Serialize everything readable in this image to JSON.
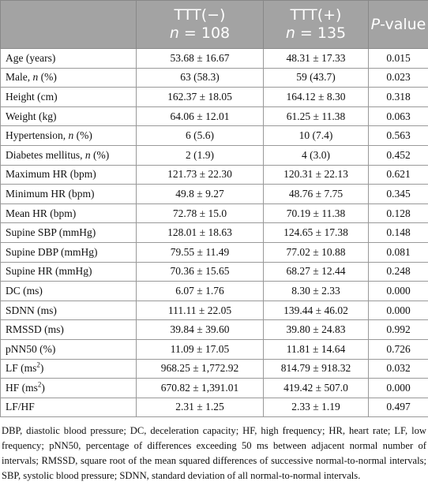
{
  "table": {
    "header": [
      null,
      {
        "group": "TTT(−)",
        "n_symbol": "n",
        "n_value": "= 108"
      },
      {
        "group": "TTT(+)",
        "n_symbol": "n",
        "n_value": "= 135"
      },
      [
        "P",
        "-value"
      ]
    ],
    "rows": [
      {
        "label": [
          "Age (years)"
        ],
        "cells": [
          "53.68 ± 16.67",
          "48.31 ± 17.33",
          "0.015"
        ]
      },
      {
        "label": [
          "Male, ",
          "n",
          " (%)"
        ],
        "cells": [
          "63 (58.3)",
          "59 (43.7)",
          "0.023"
        ]
      },
      {
        "label": [
          "Height (cm)"
        ],
        "cells": [
          "162.37 ± 18.05",
          "164.12 ± 8.30",
          "0.318"
        ]
      },
      {
        "label": [
          "Weight (kg)"
        ],
        "cells": [
          "64.06 ± 12.01",
          "61.25 ± 11.38",
          "0.063"
        ]
      },
      {
        "label": [
          "Hypertension, ",
          "n",
          " (%)"
        ],
        "cells": [
          "6 (5.6)",
          "10 (7.4)",
          "0.563"
        ]
      },
      {
        "label": [
          "Diabetes mellitus, ",
          "n",
          " (%)"
        ],
        "cells": [
          "2 (1.9)",
          "4 (3.0)",
          "0.452"
        ]
      },
      {
        "label": [
          "Maximum HR (bpm)"
        ],
        "cells": [
          "121.73 ± 22.30",
          "120.31 ± 22.13",
          "0.621"
        ]
      },
      {
        "label": [
          "Minimum HR (bpm)"
        ],
        "cells": [
          "49.8 ± 9.27",
          "48.76 ± 7.75",
          "0.345"
        ]
      },
      {
        "label": [
          "Mean HR (bpm)"
        ],
        "cells": [
          "72.78 ± 15.0",
          "70.19 ± 11.38",
          "0.128"
        ]
      },
      {
        "label": [
          "Supine SBP (mmHg)"
        ],
        "cells": [
          "128.01 ± 18.63",
          "124.65 ± 17.38",
          "0.148"
        ]
      },
      {
        "label": [
          "Supine DBP (mmHg)"
        ],
        "cells": [
          "79.55 ± 11.49",
          "77.02 ± 10.88",
          "0.081"
        ]
      },
      {
        "label": [
          "Supine HR (mmHg)"
        ],
        "cells": [
          "70.36 ± 15.65",
          "68.27 ± 12.44",
          "0.248"
        ]
      },
      {
        "label": [
          "DC (ms)"
        ],
        "cells": [
          "6.07 ± 1.76",
          "8.30 ± 2.33",
          "0.000"
        ]
      },
      {
        "label": [
          "SDNN (ms)"
        ],
        "cells": [
          "111.11 ± 22.05",
          "139.44 ± 46.02",
          "0.000"
        ]
      },
      {
        "label": [
          "RMSSD (ms)"
        ],
        "cells": [
          "39.84 ± 39.60",
          "39.80 ± 24.83",
          "0.992"
        ]
      },
      {
        "label": [
          "pNN50 (%)"
        ],
        "cells": [
          "11.09 ± 17.05",
          "11.81 ± 14.64",
          "0.726"
        ]
      },
      {
        "label": [
          "LF (ms",
          "2",
          ")"
        ],
        "cells": [
          "968.25 ± 1,772.92",
          "814.79 ± 918.32",
          "0.032"
        ]
      },
      {
        "label": [
          "HF (ms",
          "2",
          ")"
        ],
        "cells": [
          "670.82 ± 1,391.01",
          "419.42 ± 507.0",
          "0.000"
        ]
      },
      {
        "label": [
          "LF/HF"
        ],
        "cells": [
          "2.31 ± 1.25",
          "2.33 ± 1.19",
          "0.497"
        ]
      }
    ]
  },
  "footnote": "DBP, diastolic blood pressure; DC, deceleration capacity; HF, high frequency; HR, heart rate; LF, low frequency; pNN50, percentage of differences exceeding 50 ms between adjacent normal number of intervals; RMSSD, square root of the mean squared differences of successive normal-to-normal intervals; SBP, systolic blood pressure; SDNN, standard deviation of all normal-to-normal intervals."
}
